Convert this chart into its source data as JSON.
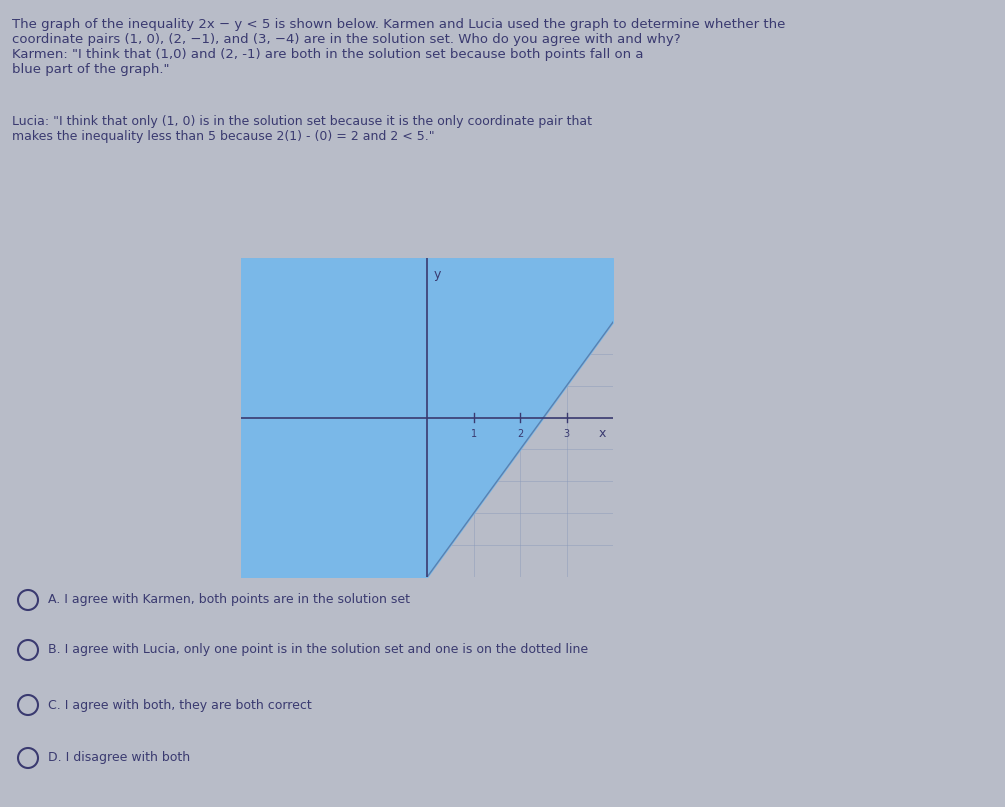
{
  "page_bg": "#b8bcc8",
  "title_text1": "The graph of the inequality 2x − y < 5 is shown below. Karmen and Lucia used the graph to determine whether the",
  "title_text2": "coordinate pairs (1, 0), (2, −1), and (3, −4) are in the solution set. Who do you agree with and why?",
  "karmen_text1": "Karmen: \"I think that (1,0) and (2, -1) are both in the solution set because both points fall on a",
  "karmen_text2": "blue part of the graph.\"",
  "lucia_text1": "Lucia: \"I think that only (1, 0) is in the solution set because it is the only coordinate pair that",
  "lucia_text2": "makes the inequality less than 5 because 2(1) - (0) = 2 and 2 < 5.\"",
  "option_a": "A. I agree with Karmen, both points are in the solution set",
  "option_b": "B. I agree with Lucia, only one point is in the solution set and one is on the dotted line",
  "option_c": "C. I agree with both, they are both correct",
  "option_d": "D. I disagree with both",
  "shade_color": "#7ab8e8",
  "line_color": "#4a6a9a",
  "axis_color": "#3a3a70",
  "grid_color": "#8898b8",
  "text_color": "#3a3a70",
  "graph_xlim": [
    -4,
    4
  ],
  "graph_ylim": [
    -5,
    5
  ],
  "font_size_title": 9.5,
  "font_size_body": 9,
  "font_size_options": 9
}
